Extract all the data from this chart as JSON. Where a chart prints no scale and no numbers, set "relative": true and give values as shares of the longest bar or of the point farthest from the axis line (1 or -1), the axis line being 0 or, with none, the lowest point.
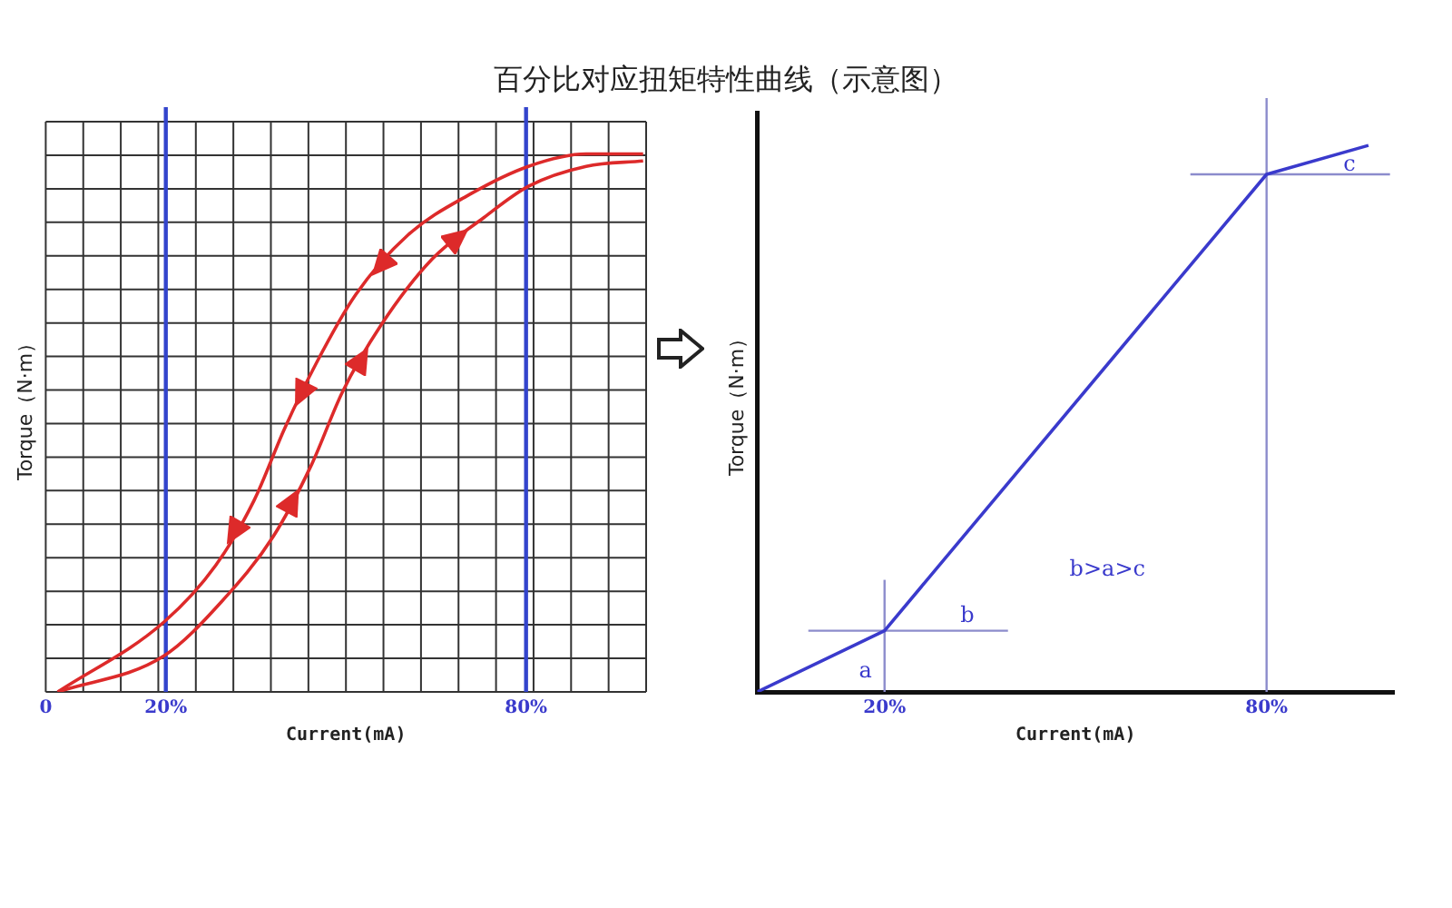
{
  "chart_data": [
    {
      "type": "line",
      "title": "百分比对应扭矩特性曲线（示意图）",
      "xlabel": "Current(mA)",
      "ylabel": "Torque（N·m）",
      "relative": true,
      "grid": true,
      "legend": false,
      "xlim": [
        0,
        100
      ],
      "xticks": [
        {
          "value": 0,
          "label": "0"
        },
        {
          "value": 20,
          "label": "20%"
        },
        {
          "value": 80,
          "label": "80%"
        }
      ],
      "ref_lines": [
        {
          "axis": "x",
          "value": 20,
          "color": "#3344cc"
        },
        {
          "axis": "x",
          "value": 80,
          "color": "#3344cc"
        }
      ],
      "series": [
        {
          "color": "#dd2a2a",
          "x": [
            2,
            19.7,
            28.3,
            34.7,
            39.8,
            45.2,
            51.6,
            60.3,
            70.8,
            80.4,
            90,
            99.5
          ],
          "values": [
            0,
            0.13,
            0.235,
            0.356,
            0.49,
            0.614,
            0.738,
            0.849,
            0.926,
            0.977,
            1,
            1
          ]
        },
        {
          "color": "#dd2a2a",
          "x": [
            2,
            19.7,
            29.3,
            37.9,
            44.3,
            49.4,
            55.8,
            64.4,
            73,
            80.4,
            90,
            99.5
          ],
          "values": [
            0,
            0.067,
            0.168,
            0.289,
            0.423,
            0.557,
            0.681,
            0.805,
            0.882,
            0.94,
            0.977,
            0.987
          ]
        }
      ]
    },
    {
      "type": "line",
      "xlabel": "Current(mA)",
      "ylabel": "Torque（N·m）",
      "relative": true,
      "legend": false,
      "xlim": [
        0,
        100
      ],
      "xticks": [
        {
          "value": 20,
          "label": "20%"
        },
        {
          "value": 80,
          "label": "80%"
        }
      ],
      "ref_lines": [
        {
          "axis": "x",
          "value": 20,
          "color": "#8c8ccc"
        },
        {
          "axis": "y",
          "value": 0.112,
          "color": "#8c8ccc"
        },
        {
          "axis": "x",
          "value": 80,
          "color": "#8c8ccc"
        },
        {
          "axis": "y",
          "value": 0.947,
          "color": "#8c8ccc"
        }
      ],
      "annotations": [
        "a",
        "b",
        "c",
        "b>a>c"
      ],
      "series": [
        {
          "color": "#3a3acc",
          "x": [
            0,
            20,
            80,
            96
          ],
          "values": [
            0,
            0.112,
            0.947,
            1
          ]
        }
      ]
    }
  ]
}
